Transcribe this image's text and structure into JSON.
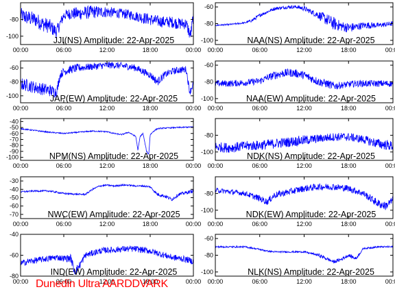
{
  "chart_data": [
    {
      "type": "line",
      "title": "JJI(NS) Amplitude: 22-Apr-2025",
      "xticks": [
        "00:00",
        "06:00",
        "12:00",
        "18:00",
        "00:00"
      ],
      "yticks": [
        "-80",
        "-100"
      ],
      "ylim": [
        -110,
        -60
      ],
      "series": [
        {
          "color": "#0000ff",
          "x": [
            0,
            1,
            2,
            3,
            4,
            5,
            6,
            7,
            8,
            9,
            10,
            11,
            12,
            13,
            14,
            15,
            16,
            17,
            18,
            19,
            20,
            21,
            22,
            23,
            23.6,
            24
          ],
          "y": [
            -75,
            -78,
            -80,
            -85,
            -88,
            -95,
            -75,
            -73,
            -73,
            -72,
            -71,
            -71,
            -71,
            -72,
            -73,
            -74,
            -76,
            -78,
            -80,
            -82,
            -83,
            -83,
            -85,
            -85,
            -100,
            -75
          ],
          "band": [
            9,
            9,
            9,
            9,
            9,
            8,
            6,
            7,
            8,
            8,
            8,
            7,
            7,
            6,
            6,
            6,
            6,
            7,
            7,
            7,
            7,
            7,
            7,
            7,
            8,
            8
          ]
        }
      ]
    },
    {
      "type": "line",
      "title": "NAA(NS) Amplitude: 22-Apr-2025",
      "xticks": [
        "00:00",
        "06:00",
        "12:00",
        "18:00",
        "00:00"
      ],
      "yticks": [
        "-60",
        "-80",
        "-100"
      ],
      "ylim": [
        -105,
        -55
      ],
      "series": [
        {
          "color": "#0000ff",
          "x": [
            0,
            2,
            4,
            5,
            6,
            7,
            8,
            9,
            10,
            11,
            12,
            13,
            14,
            15,
            16,
            17,
            18,
            19,
            20,
            21,
            22,
            23,
            24
          ],
          "y": [
            -82,
            -81,
            -79,
            -76,
            -70,
            -66,
            -62,
            -61,
            -60,
            -60,
            -62,
            -66,
            -70,
            -75,
            -80,
            -83,
            -85,
            -84,
            -82,
            -82,
            -82,
            -81,
            -80
          ],
          "band": [
            1,
            1,
            1,
            2,
            2,
            2,
            2,
            2,
            2,
            2,
            3,
            3,
            5,
            7,
            8,
            6,
            6,
            5,
            4,
            4,
            3,
            3,
            3
          ]
        }
      ]
    },
    {
      "type": "line",
      "title": "JAP(EW) Amplitude: 22-Apr-2025",
      "xticks": [
        "00:00",
        "06:00",
        "12:00",
        "18:00",
        "00:00"
      ],
      "yticks": [
        "-60",
        "-80",
        "-100"
      ],
      "ylim": [
        -110,
        -50
      ],
      "series": [
        {
          "color": "#0000ff",
          "x": [
            0,
            1,
            2,
            3,
            4,
            5,
            5.5,
            6,
            7,
            8,
            9,
            10,
            11,
            12,
            13,
            14,
            15,
            16,
            17,
            18,
            19,
            20,
            21,
            22,
            23,
            23.5,
            24
          ],
          "y": [
            -83,
            -85,
            -88,
            -90,
            -92,
            -95,
            -70,
            -65,
            -62,
            -60,
            -59,
            -58,
            -57,
            -56,
            -56,
            -57,
            -58,
            -60,
            -65,
            -70,
            -80,
            -70,
            -65,
            -63,
            -62,
            -95,
            -82
          ],
          "band": [
            9,
            9,
            9,
            9,
            9,
            8,
            6,
            6,
            6,
            6,
            5,
            5,
            5,
            5,
            5,
            5,
            5,
            5,
            5,
            5,
            6,
            5,
            5,
            5,
            5,
            5,
            5
          ]
        }
      ]
    },
    {
      "type": "line",
      "title": "NAA(EW) Amplitude: 22-Apr-2025",
      "xticks": [
        "00:00",
        "06:00",
        "12:00",
        "18:00",
        "00:00"
      ],
      "yticks": [
        "-60",
        "-80",
        "-100"
      ],
      "ylim": [
        -105,
        -55
      ],
      "series": [
        {
          "color": "#0000ff",
          "x": [
            0,
            2,
            4,
            6,
            7,
            8,
            9,
            10,
            11,
            12,
            13,
            14,
            15,
            16,
            17,
            18,
            19,
            20,
            21,
            22,
            23,
            24
          ],
          "y": [
            -82,
            -82,
            -81,
            -79,
            -75,
            -72,
            -70,
            -69,
            -70,
            -72,
            -76,
            -80,
            -82,
            -85,
            -84,
            -83,
            -82,
            -82,
            -82,
            -82,
            -82,
            -82
          ],
          "band": [
            4,
            4,
            4,
            4,
            4,
            5,
            5,
            5,
            5,
            5,
            5,
            5,
            5,
            5,
            4,
            4,
            4,
            4,
            4,
            4,
            4,
            4
          ]
        }
      ]
    },
    {
      "type": "line",
      "title": "NPM(NS) Amplitude: 22-Apr-2025",
      "xticks": [
        "00:00",
        "06:00",
        "12:00",
        "18:00",
        "00:00"
      ],
      "yticks": [
        "-40",
        "-50",
        "-60",
        "-70",
        "-80",
        "-90",
        "-100"
      ],
      "ylim": [
        -105,
        -35
      ],
      "series": [
        {
          "color": "#0000ff",
          "x": [
            0,
            2,
            4,
            6,
            8,
            10,
            12,
            13,
            14,
            15,
            16,
            16.3,
            16.6,
            17,
            17.5,
            17.8,
            18,
            18.5,
            19,
            20,
            22,
            24
          ],
          "y": [
            -52,
            -55,
            -58,
            -60,
            -58,
            -56,
            -57,
            -60,
            -62,
            -58,
            -65,
            -88,
            -65,
            -60,
            -90,
            -95,
            -62,
            -56,
            -52,
            -51,
            -50,
            -49
          ],
          "band": [
            1,
            1,
            1,
            1,
            1,
            1,
            1,
            1,
            1,
            1,
            1,
            1,
            1,
            1,
            1,
            1,
            1,
            1,
            1,
            1,
            1,
            1
          ]
        }
      ]
    },
    {
      "type": "line",
      "title": "NDK(NS) Amplitude: 22-Apr-2025",
      "xticks": [
        "00:00",
        "06:00",
        "12:00",
        "18:00",
        "00:00"
      ],
      "yticks": [
        "-80",
        "-100"
      ],
      "ylim": [
        -110,
        -60
      ],
      "series": [
        {
          "color": "#0000ff",
          "x": [
            0,
            2,
            4,
            6,
            8,
            10,
            12,
            14,
            16,
            18,
            20,
            22,
            24
          ],
          "y": [
            -94,
            -95,
            -93,
            -92,
            -90,
            -88,
            -86,
            -84,
            -82,
            -82,
            -85,
            -90,
            -93
          ],
          "band": [
            6,
            6,
            6,
            6,
            6,
            6,
            6,
            5,
            5,
            5,
            5,
            6,
            6
          ]
        }
      ]
    },
    {
      "type": "line",
      "title": "NWC(EW) Amplitude: 22-Apr-2025",
      "xticks": [
        "00:00",
        "06:00",
        "12:00",
        "18:00",
        "00:00"
      ],
      "yticks": [
        "-30",
        "-40",
        "-50",
        "-60",
        "-70"
      ],
      "ylim": [
        -75,
        -25
      ],
      "series": [
        {
          "color": "#0000ff",
          "x": [
            0,
            2,
            4,
            6,
            8,
            9,
            10,
            11,
            12,
            13,
            14,
            15,
            16,
            17,
            18,
            19,
            20,
            21,
            22,
            23,
            24
          ],
          "y": [
            -43,
            -42,
            -42,
            -45,
            -46,
            -46,
            -40,
            -36,
            -35,
            -36,
            -35,
            -35,
            -36,
            -36,
            -37,
            -46,
            -48,
            -52,
            -46,
            -44,
            -42
          ],
          "band": [
            1,
            1,
            1,
            1,
            1,
            1,
            1,
            1,
            1,
            1,
            1,
            1,
            1,
            1,
            1,
            2,
            2,
            2,
            2,
            2,
            2
          ]
        }
      ]
    },
    {
      "type": "line",
      "title": "NDK(EW) Amplitude: 22-Apr-2025",
      "xticks": [
        "00:00",
        "06:00",
        "12:00",
        "18:00",
        "00:00"
      ],
      "yticks": [
        "-80",
        "-100"
      ],
      "ylim": [
        -110,
        -60
      ],
      "series": [
        {
          "color": "#0000ff",
          "x": [
            0,
            2,
            4,
            6,
            7,
            8,
            10,
            12,
            14,
            16,
            18,
            20,
            22,
            23,
            24
          ],
          "y": [
            -76,
            -78,
            -80,
            -86,
            -90,
            -82,
            -78,
            -74,
            -72,
            -72,
            -74,
            -80,
            -92,
            -95,
            -88
          ],
          "band": [
            3,
            3,
            3,
            4,
            4,
            4,
            4,
            4,
            4,
            4,
            4,
            4,
            5,
            5,
            5
          ]
        }
      ]
    },
    {
      "type": "line",
      "title": "IND(EW) Amplitude: 22-Apr-2025",
      "xticks": [
        "00:00",
        "06:00",
        "12:00",
        "18:00",
        "00:00"
      ],
      "yticks": [
        "-40",
        "-60",
        "-80"
      ],
      "ylim": [
        -80,
        -40
      ],
      "series": [
        {
          "color": "#0000ff",
          "x": [
            0,
            1,
            2,
            3,
            4,
            5,
            6,
            7,
            7.5,
            8,
            9,
            10,
            11,
            12,
            13,
            14,
            15,
            16,
            17,
            18,
            19,
            20,
            21,
            22,
            23,
            24
          ],
          "y": [
            -68,
            -66,
            -65,
            -64,
            -63,
            -62,
            -63,
            -63,
            -76,
            -72,
            -60,
            -58,
            -56,
            -55,
            -55,
            -54,
            -54,
            -54,
            -55,
            -56,
            -58,
            -60,
            -62,
            -63,
            -64,
            -66
          ],
          "band": [
            3,
            3,
            3,
            3,
            3,
            3,
            3,
            4,
            4,
            4,
            3,
            3,
            3,
            3,
            3,
            3,
            3,
            3,
            3,
            3,
            3,
            3,
            3,
            3,
            3,
            3
          ]
        }
      ]
    },
    {
      "type": "line",
      "title": "NLK(NS) Amplitude: 22-Apr-2025",
      "xticks": [
        "00:00",
        "06:00",
        "12:00",
        "18:00",
        "00:00"
      ],
      "yticks": [
        "-60",
        "-80",
        "-100"
      ],
      "ylim": [
        -105,
        -55
      ],
      "series": [
        {
          "color": "#0000ff",
          "x": [
            0,
            2,
            4,
            6,
            7,
            8,
            10,
            12,
            13,
            14,
            15,
            16,
            17,
            18,
            19,
            20,
            21,
            22,
            24
          ],
          "y": [
            -70,
            -70,
            -70,
            -73,
            -75,
            -76,
            -76,
            -76,
            -78,
            -80,
            -84,
            -88,
            -85,
            -80,
            -84,
            -72,
            -71,
            -70,
            -70
          ],
          "band": [
            1,
            1,
            1,
            1,
            1,
            1,
            1,
            1,
            1,
            2,
            2,
            2,
            2,
            2,
            2,
            1,
            1,
            1,
            1
          ]
        }
      ]
    }
  ],
  "credit": "Dunedin Ultra AARDDVARK"
}
